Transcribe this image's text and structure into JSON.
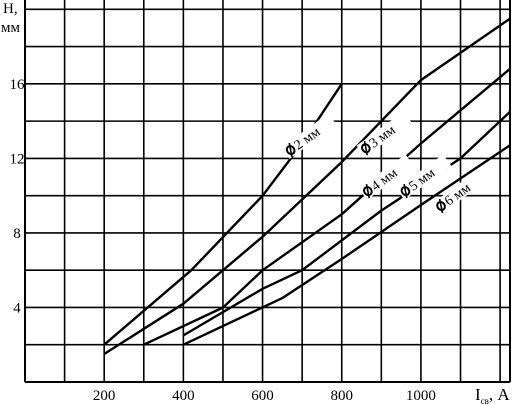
{
  "chart_data": {
    "type": "line",
    "title": "",
    "ylabel": "H,",
    "ylabel_unit": "мм",
    "xlabel_main": "I",
    "xlabel_sub": "св",
    "xlabel_unit": ", А",
    "xlim": [
      0,
      1225
    ],
    "ylim": [
      0,
      20.5
    ],
    "x_ticks": [
      {
        "value": 200,
        "label": "200"
      },
      {
        "value": 400,
        "label": "400"
      },
      {
        "value": 600,
        "label": "600"
      },
      {
        "value": 800,
        "label": "800"
      },
      {
        "value": 1000,
        "label": "1000"
      }
    ],
    "y_ticks": [
      {
        "value": 4,
        "label": "4"
      },
      {
        "value": 8,
        "label": "8"
      },
      {
        "value": 12,
        "label": "12"
      },
      {
        "value": 16,
        "label": "16"
      }
    ],
    "grid": true,
    "grid_x_step": 100,
    "grid_y_step": 2,
    "series": [
      {
        "name": "2 мм",
        "label_at": [
          670,
          12.2
        ],
        "points": [
          [
            200,
            2.0
          ],
          [
            420,
            6.0
          ],
          [
            600,
            10.0
          ],
          [
            700,
            12.8
          ],
          [
            800,
            16.0
          ]
        ]
      },
      {
        "name": "3 мм",
        "label_at": [
          860,
          12.3
        ],
        "points": [
          [
            200,
            1.5
          ],
          [
            400,
            4.2
          ],
          [
            600,
            7.8
          ],
          [
            800,
            11.8
          ],
          [
            1000,
            16.2
          ],
          [
            1225,
            19.5
          ]
        ]
      },
      {
        "name": "4 мм",
        "label_at": [
          865,
          10.0
        ],
        "points": [
          [
            300,
            2.0
          ],
          [
            500,
            4.0
          ],
          [
            600,
            6.0
          ],
          [
            800,
            9.0
          ],
          [
            1000,
            12.8
          ],
          [
            1225,
            16.8
          ]
        ]
      },
      {
        "name": "5 мм",
        "label_at": [
          960,
          10.0
        ],
        "points": [
          [
            400,
            2.5
          ],
          [
            600,
            5.0
          ],
          [
            700,
            6.0
          ],
          [
            900,
            9.2
          ],
          [
            1100,
            12.0
          ],
          [
            1225,
            14.5
          ]
        ]
      },
      {
        "name": "6 мм",
        "label_at": [
          1050,
          9.2
        ],
        "points": [
          [
            400,
            2.0
          ],
          [
            650,
            4.5
          ],
          [
            800,
            6.6
          ],
          [
            1000,
            9.5
          ],
          [
            1225,
            12.7
          ]
        ]
      }
    ]
  }
}
